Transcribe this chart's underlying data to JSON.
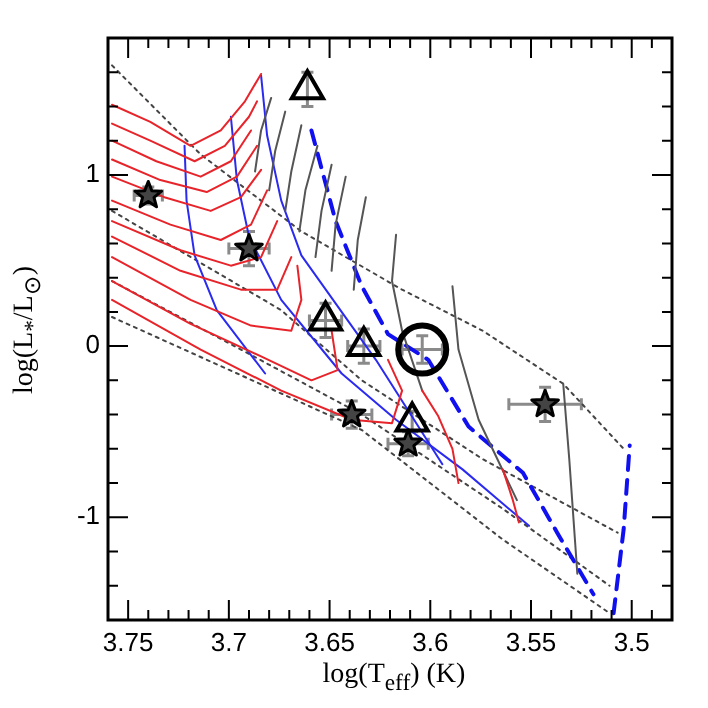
{
  "chart_data": {
    "type": "line",
    "xlabel": "log(T$_{eff}$) (K)",
    "ylabel": "log(L$_{*}$/L$_{⊙}$)",
    "xlim": [
      3.76,
      3.48
    ],
    "ylim": [
      -1.6,
      1.8
    ],
    "xticks": [
      {
        "value": 3.76,
        "label": null
      },
      3.75,
      {
        "value": 3.74,
        "label": null
      },
      {
        "value": 3.73,
        "label": null
      },
      {
        "value": 3.72,
        "label": null
      },
      {
        "value": 3.71,
        "label": null
      },
      3.7,
      {
        "value": 3.69,
        "label": null
      },
      {
        "value": 3.68,
        "label": null
      },
      {
        "value": 3.67,
        "label": null
      },
      {
        "value": 3.66,
        "label": null
      },
      3.65,
      {
        "value": 3.64,
        "label": null
      },
      {
        "value": 3.63,
        "label": null
      },
      {
        "value": 3.62,
        "label": null
      },
      {
        "value": 3.61,
        "label": null
      },
      3.6,
      {
        "value": 3.59,
        "label": null
      },
      {
        "value": 3.58,
        "label": null
      },
      {
        "value": 3.57,
        "label": null
      },
      {
        "value": 3.56,
        "label": null
      },
      3.55,
      {
        "value": 3.54,
        "label": null
      },
      {
        "value": 3.53,
        "label": null
      },
      {
        "value": 3.52,
        "label": null
      },
      {
        "value": 3.51,
        "label": null
      },
      3.5,
      {
        "value": 3.49,
        "label": null
      }
    ],
    "yticks": [
      {
        "value": -1.4,
        "label": null
      },
      {
        "value": -1.2,
        "label": null
      },
      -1,
      {
        "value": -0.8,
        "label": null
      },
      {
        "value": -0.6,
        "label": null
      },
      {
        "value": -0.4,
        "label": null
      },
      {
        "value": -0.2,
        "label": null
      },
      0,
      {
        "value": 0.2,
        "label": null
      },
      {
        "value": 0.4,
        "label": null
      },
      {
        "value": 0.6,
        "label": null
      },
      {
        "value": 0.8,
        "label": null
      },
      1,
      {
        "value": 1.2,
        "label": null
      },
      {
        "value": 1.4,
        "label": null
      },
      {
        "value": 1.6,
        "label": null
      }
    ],
    "series": [
      {
        "type": "line",
        "marker": "none",
        "line_style": "solid",
        "color": "#e8242b",
        "x": [
          3.758,
          3.739,
          3.719,
          3.704,
          3.692,
          3.684
        ],
        "values": [
          1.41,
          1.31,
          1.17,
          1.26,
          1.43,
          1.59
        ]
      },
      {
        "type": "line",
        "marker": "none",
        "line_style": "solid",
        "color": "#e8242b",
        "x": [
          3.758,
          3.739,
          3.717,
          3.702,
          3.69,
          3.686
        ],
        "values": [
          1.3,
          1.2,
          1.08,
          1.17,
          1.34,
          1.43
        ]
      },
      {
        "type": "line",
        "marker": "none",
        "line_style": "solid",
        "color": "#e8242b",
        "x": [
          3.758,
          3.736,
          3.714,
          3.699,
          3.689
        ],
        "values": [
          1.2,
          1.08,
          0.99,
          1.08,
          1.26
        ]
      },
      {
        "type": "line",
        "marker": "none",
        "line_style": "solid",
        "color": "#e8242b",
        "x": [
          3.758,
          3.734,
          3.711,
          3.696,
          3.686
        ],
        "values": [
          1.09,
          0.97,
          0.9,
          0.99,
          1.17
        ]
      },
      {
        "type": "line",
        "marker": "none",
        "line_style": "solid",
        "color": "#e8242b",
        "x": [
          3.758,
          3.732,
          3.709,
          3.694,
          3.684
        ],
        "values": [
          0.99,
          0.87,
          0.79,
          0.87,
          1.03
        ]
      },
      {
        "type": "line",
        "marker": "none",
        "line_style": "solid",
        "color": "#e8242b",
        "x": [
          3.758,
          3.729,
          3.704,
          3.689,
          3.681
        ],
        "values": [
          0.85,
          0.71,
          0.62,
          0.71,
          0.91
        ]
      },
      {
        "type": "line",
        "marker": "none",
        "line_style": "solid",
        "color": "#e8242b",
        "x": [
          3.758,
          3.724,
          3.699,
          3.684,
          3.676
        ],
        "values": [
          0.73,
          0.56,
          0.47,
          0.52,
          0.73
        ]
      },
      {
        "type": "line",
        "marker": "none",
        "line_style": "solid",
        "color": "#e8242b",
        "x": [
          3.758,
          3.724,
          3.694,
          3.676,
          3.669
        ],
        "values": [
          0.64,
          0.44,
          0.33,
          0.33,
          0.52
        ]
      },
      {
        "type": "line",
        "marker": "none",
        "line_style": "solid",
        "color": "#e8242b",
        "x": [
          3.758,
          3.719,
          3.689,
          3.669,
          3.664,
          3.666
        ],
        "values": [
          0.52,
          0.27,
          0.12,
          0.09,
          0.27,
          0.47
        ]
      },
      {
        "type": "line",
        "marker": "none",
        "line_style": "solid",
        "color": "#e8242b",
        "x": [
          3.758,
          3.719,
          3.684,
          3.659,
          3.646,
          3.649
        ],
        "values": [
          0.38,
          0.13,
          -0.06,
          -0.2,
          -0.14,
          0.09
        ]
      },
      {
        "type": "line",
        "marker": "none",
        "line_style": "solid",
        "color": "#e8242b",
        "x": [
          3.758,
          3.714,
          3.674,
          3.639,
          3.619,
          3.614,
          3.621
        ],
        "values": [
          0.27,
          -0.02,
          -0.26,
          -0.43,
          -0.45,
          -0.26,
          -0.08
        ]
      },
      {
        "type": "line",
        "marker": "none",
        "line_style": "solid",
        "color": "#e8242b",
        "x": [
          3.604,
          3.596,
          3.589,
          3.586
        ],
        "values": [
          -0.26,
          -0.41,
          -0.6,
          -0.8
        ]
      },
      {
        "type": "line",
        "marker": "none",
        "line_style": "solid",
        "color": "#e8242b",
        "x": [
          3.564,
          3.559,
          3.556
        ],
        "values": [
          -0.72,
          -0.9,
          -1.03
        ]
      },
      {
        "type": "line",
        "marker": "none",
        "line_style": "solid",
        "color": "#555555",
        "x": [
          3.679,
          3.684,
          3.687
        ],
        "values": [
          1.45,
          1.26,
          1.02
        ]
      },
      {
        "type": "line",
        "marker": "none",
        "line_style": "solid",
        "color": "#555555",
        "x": [
          3.672,
          3.677,
          3.68
        ],
        "values": [
          1.37,
          1.14,
          0.91
        ]
      },
      {
        "type": "line",
        "marker": "none",
        "line_style": "solid",
        "color": "#555555",
        "x": [
          3.664,
          3.669,
          3.672
        ],
        "values": [
          1.29,
          1.02,
          0.79
        ]
      },
      {
        "type": "line",
        "marker": "none",
        "line_style": "solid",
        "color": "#555555",
        "x": [
          3.656,
          3.662,
          3.665
        ],
        "values": [
          1.17,
          0.91,
          0.67
        ]
      },
      {
        "type": "line",
        "marker": "none",
        "line_style": "solid",
        "color": "#555555",
        "x": [
          3.649,
          3.654,
          3.657
        ],
        "values": [
          1.06,
          0.79,
          0.52
        ]
      },
      {
        "type": "line",
        "marker": "none",
        "line_style": "solid",
        "color": "#555555",
        "x": [
          3.642,
          3.647,
          3.649
        ],
        "values": [
          0.99,
          0.71,
          0.44
        ]
      },
      {
        "type": "line",
        "marker": "none",
        "line_style": "solid",
        "color": "#555555",
        "x": [
          3.632,
          3.636,
          3.638
        ],
        "values": [
          0.87,
          0.62,
          0.33
        ]
      },
      {
        "type": "line",
        "marker": "none",
        "line_style": "solid",
        "color": "#555555",
        "x": [
          3.617,
          3.619,
          3.614,
          3.604
        ],
        "values": [
          0.65,
          0.38,
          0.09,
          -0.26
        ]
      },
      {
        "type": "line",
        "marker": "none",
        "line_style": "solid",
        "color": "#555555",
        "x": [
          3.589,
          3.586,
          3.576,
          3.557
        ],
        "values": [
          0.35,
          -0.02,
          -0.43,
          -0.9
        ]
      },
      {
        "type": "line",
        "marker": "none",
        "line_style": "solid",
        "color": "#555555",
        "x": [
          3.534,
          3.531,
          3.527
        ],
        "values": [
          -0.22,
          -0.66,
          -1.33
        ]
      },
      {
        "type": "line",
        "marker": "none",
        "line_style": "solid",
        "color": "#2a2af0",
        "x": [
          3.722,
          3.721,
          3.717,
          3.706,
          3.682
        ],
        "values": [
          1.17,
          0.85,
          0.53,
          0.21,
          -0.16
        ]
      },
      {
        "type": "line",
        "marker": "none",
        "line_style": "solid",
        "color": "#2a2af0",
        "x": [
          3.684,
          3.681,
          3.674,
          3.664,
          3.641,
          3.627,
          3.594
        ],
        "values": [
          1.58,
          1.23,
          0.85,
          0.53,
          0.15,
          -0.08,
          -0.69
        ]
      },
      {
        "type": "line",
        "marker": "none",
        "line_style": "solid",
        "color": "#2a2af0",
        "x": [
          3.699,
          3.696,
          3.69,
          3.674,
          3.644,
          3.617,
          3.584,
          3.551
        ],
        "values": [
          1.34,
          0.97,
          0.64,
          0.27,
          -0.16,
          -0.43,
          -0.72,
          -1.05
        ]
      },
      {
        "type": "line",
        "marker": "none",
        "line_style": "dashed",
        "color": "#1010f0",
        "x": [
          3.659,
          3.647,
          3.634,
          3.621,
          3.601,
          3.581,
          3.554,
          3.537,
          3.519
        ],
        "values": [
          1.26,
          0.73,
          0.35,
          0.07,
          -0.08,
          -0.47,
          -0.74,
          -1.09,
          -1.45
        ]
      },
      {
        "type": "line",
        "marker": "none",
        "line_style": "dashed",
        "color": "#1010f0",
        "x": [
          3.509,
          3.504,
          3.501
        ],
        "values": [
          -1.56,
          -1.07,
          -0.58
        ]
      },
      {
        "type": "line",
        "marker": "none",
        "line_style": "dotted",
        "color": "#444444",
        "x": [
          3.758,
          3.714,
          3.664,
          3.614,
          3.574,
          3.534,
          3.504
        ],
        "values": [
          1.64,
          1.12,
          0.67,
          0.33,
          0.09,
          -0.22,
          -0.6
        ]
      },
      {
        "type": "line",
        "marker": "none",
        "line_style": "dotted",
        "color": "#444444",
        "x": [
          3.758,
          3.674,
          3.634,
          3.574,
          3.507
        ],
        "values": [
          0.79,
          0.21,
          -0.2,
          -0.66,
          -1.09
        ]
      },
      {
        "type": "line",
        "marker": "none",
        "line_style": "dotted",
        "color": "#444444",
        "x": [
          3.758,
          3.694,
          3.634,
          3.564,
          3.511
        ],
        "values": [
          0.38,
          -0.02,
          -0.4,
          -0.95,
          -1.4
        ]
      },
      {
        "type": "line",
        "marker": "none",
        "line_style": "dotted",
        "color": "#444444",
        "x": [
          3.758,
          3.694,
          3.634,
          3.564,
          3.511
        ],
        "values": [
          0.17,
          -0.17,
          -0.49,
          -1.13,
          -1.56
        ]
      },
      {
        "type": "scatter",
        "marker": "triangle",
        "color": "#000000",
        "x": [
          3.661,
          3.652,
          3.633,
          3.609
        ],
        "values": [
          1.5,
          0.15,
          0.0,
          -0.44
        ],
        "xerrors": [
          null,
          0.008,
          0.008,
          null
        ],
        "errors": [
          0.1,
          0.1,
          0.1,
          0.06
        ]
      },
      {
        "type": "scatter",
        "marker": "circle",
        "color": "#000000",
        "x": [
          3.604
        ],
        "values": [
          -0.02
        ],
        "xerrors": [
          0.01
        ],
        "errors": [
          0.08
        ]
      },
      {
        "type": "scatter",
        "marker": "star",
        "color": "#000000",
        "x": [
          3.74,
          3.69,
          3.639,
          3.611,
          3.543
        ],
        "values": [
          0.88,
          0.57,
          -0.4,
          -0.57,
          -0.34
        ],
        "xerrors": [
          0.007,
          0.01,
          0.01,
          0.01,
          0.018
        ],
        "errors": [
          0.05,
          0.1,
          0.08,
          0.07,
          0.1
        ]
      }
    ]
  }
}
